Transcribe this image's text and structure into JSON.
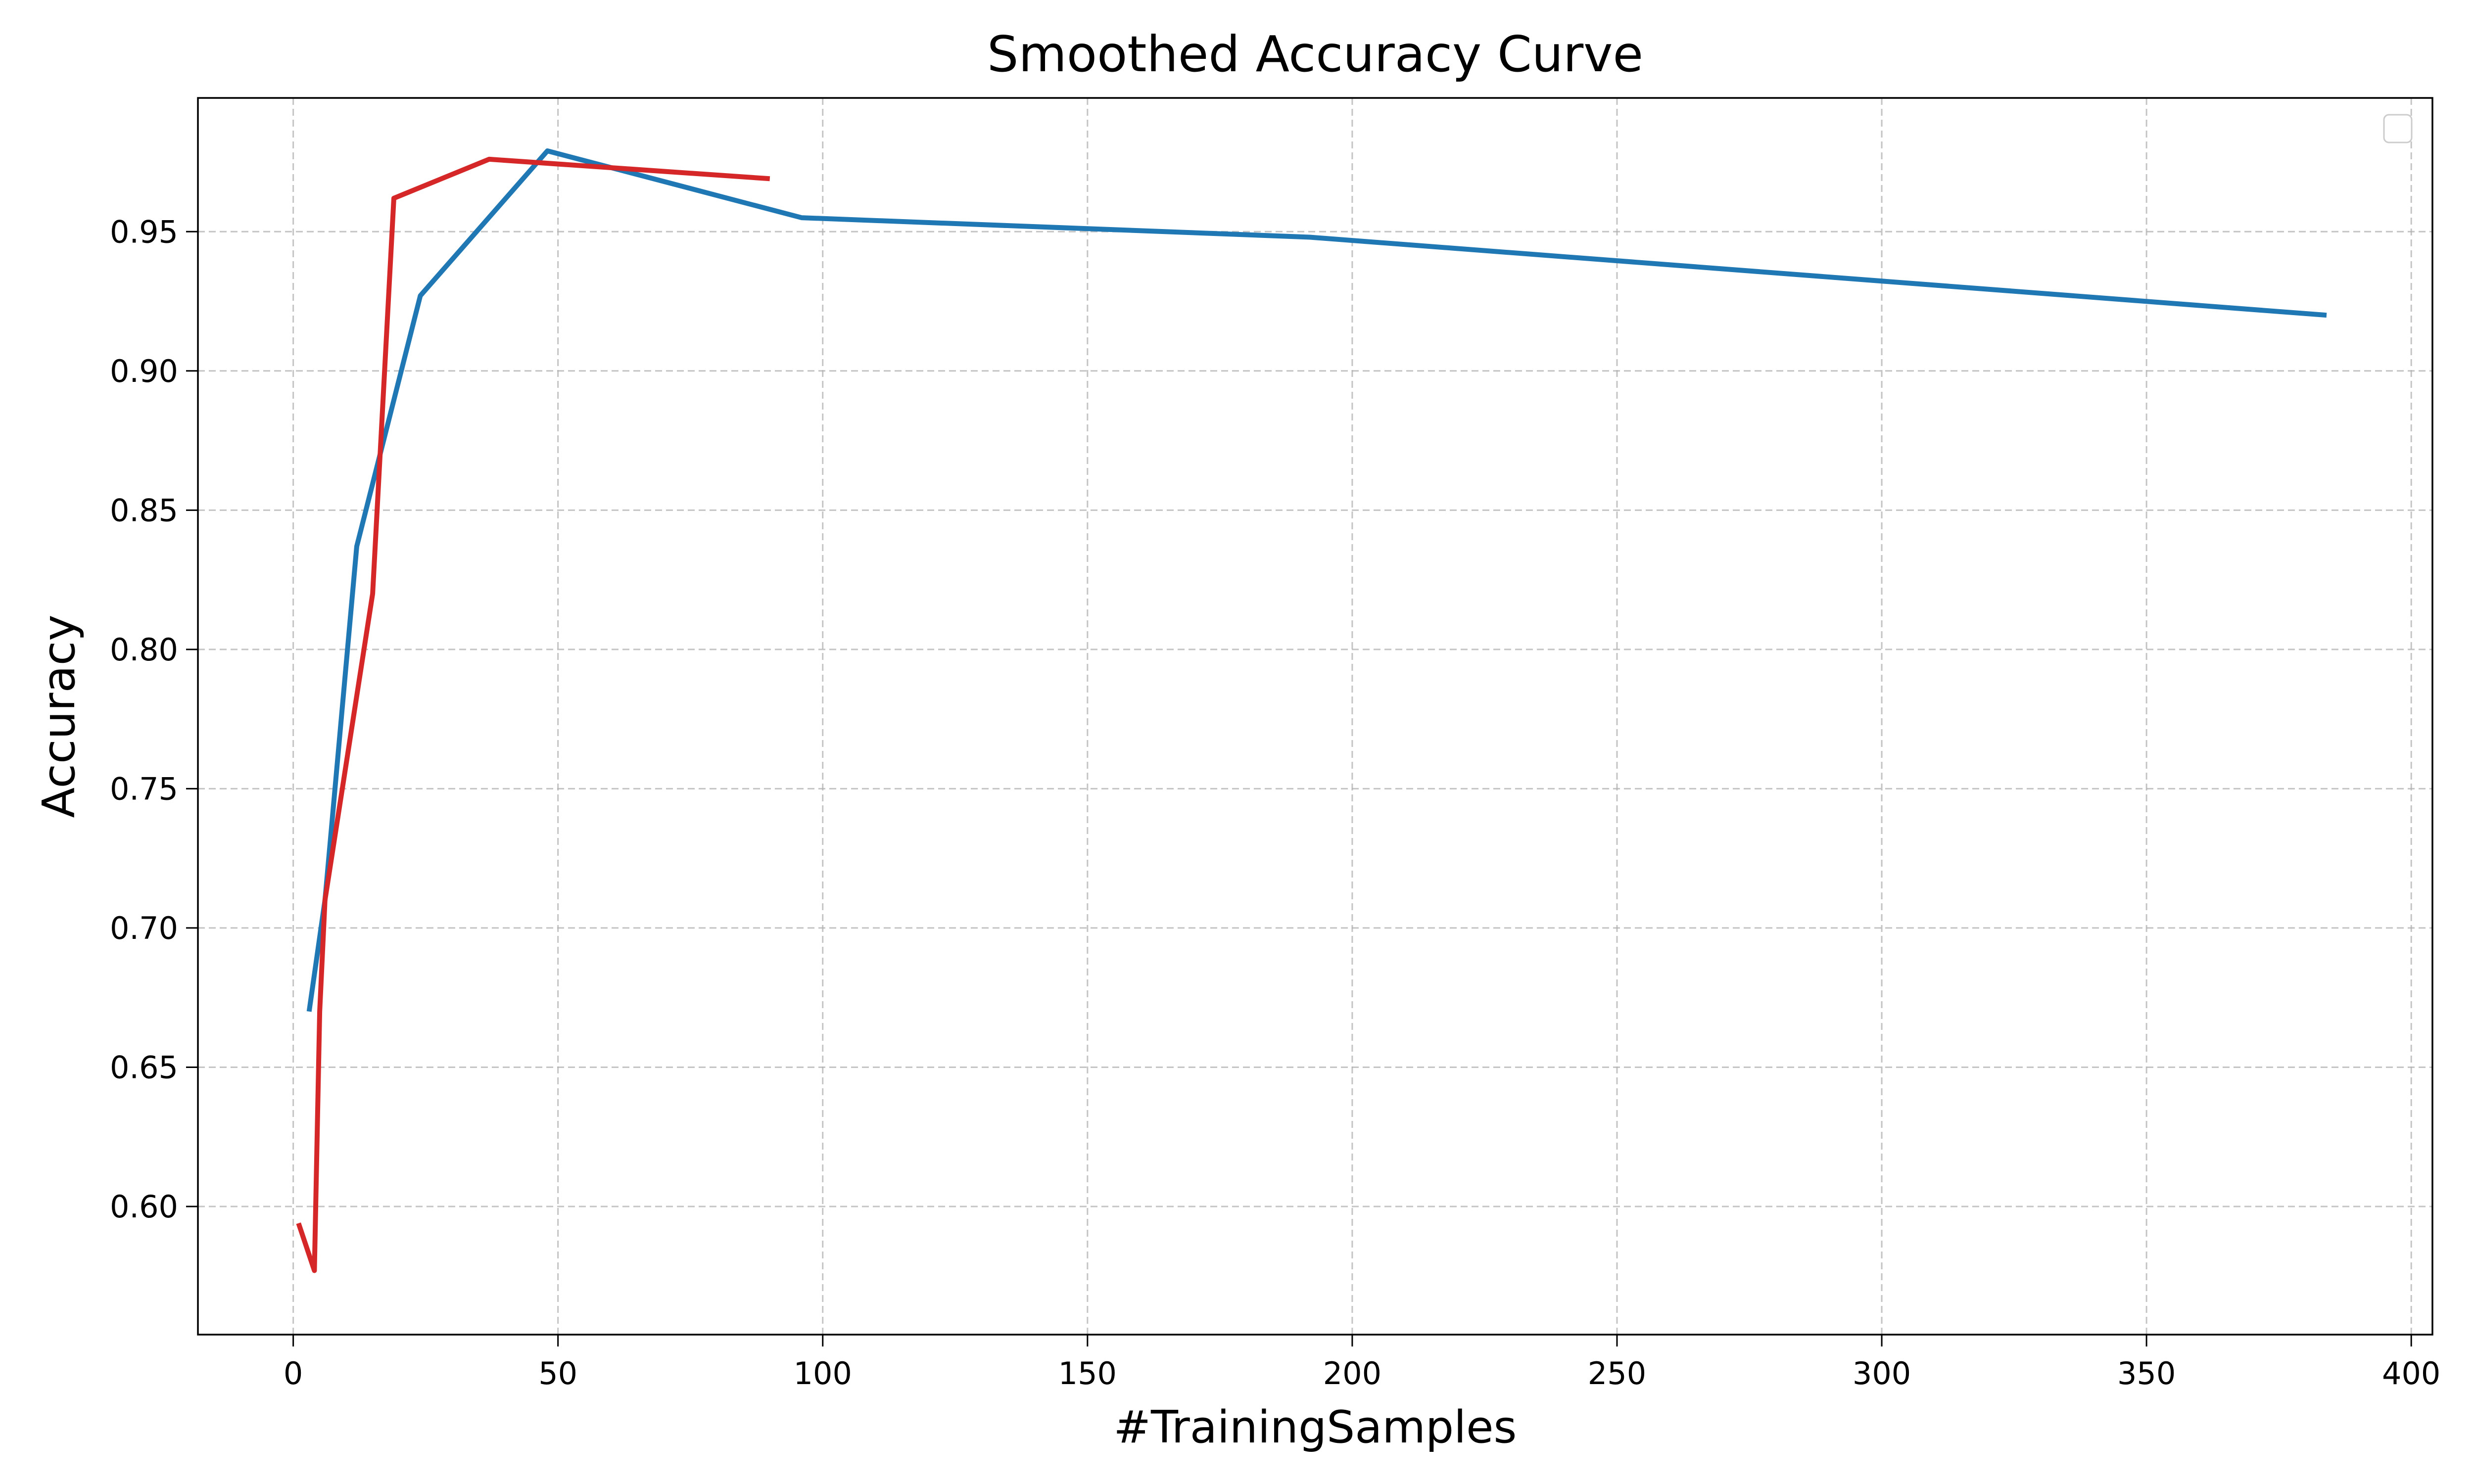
{
  "chart_data": {
    "type": "line",
    "title": "Smoothed Accuracy Curve",
    "xlabel": "#TrainingSamples",
    "ylabel": "Accuracy",
    "xlim": [
      -18,
      404
    ],
    "ylim": [
      0.554,
      0.998
    ],
    "xticks": [
      0,
      50,
      100,
      150,
      200,
      250,
      300,
      350,
      400
    ],
    "xtick_labels": [
      "0",
      "50",
      "100",
      "150",
      "200",
      "250",
      "300",
      "350",
      "400"
    ],
    "yticks": [
      0.6,
      0.65,
      0.7,
      0.75,
      0.8,
      0.85,
      0.9,
      0.95
    ],
    "ytick_labels": [
      "0.60",
      "0.65",
      "0.70",
      "0.75",
      "0.80",
      "0.85",
      "0.90",
      "0.95"
    ],
    "grid": true,
    "legend_location": "upper right",
    "series": [
      {
        "color": "#1f77b4",
        "x": [
          3,
          6,
          12,
          24,
          48,
          96,
          192,
          384
        ],
        "y": [
          0.67,
          0.71,
          0.837,
          0.927,
          0.979,
          0.955,
          0.948,
          0.92
        ]
      },
      {
        "color": "#d62728",
        "x": [
          1,
          4,
          5,
          6,
          15,
          19,
          37,
          90
        ],
        "y": [
          0.594,
          0.577,
          0.67,
          0.71,
          0.82,
          0.962,
          0.976,
          0.969
        ]
      }
    ]
  }
}
